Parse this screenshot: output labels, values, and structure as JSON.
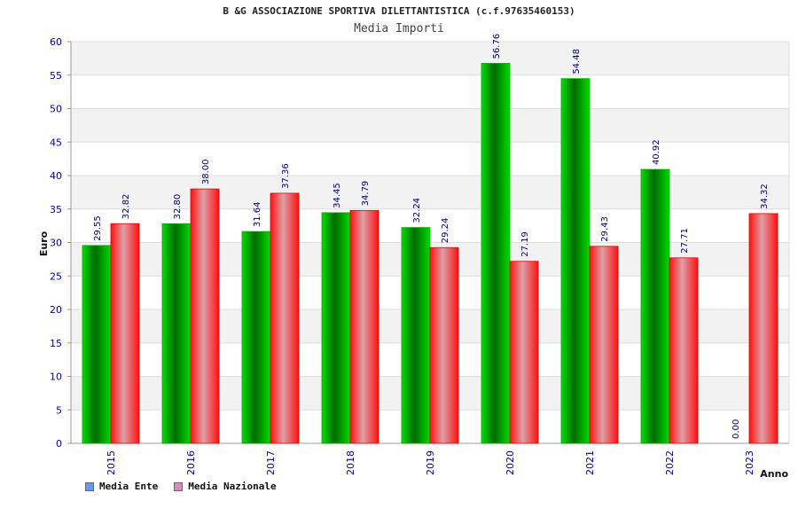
{
  "chart_data": {
    "type": "bar",
    "title": "B &G ASSOCIAZIONE SPORTIVA DILETTANTISTICA (c.f.97635460153)",
    "subtitle": "Media Importi",
    "xlabel": "Anno",
    "ylabel": "Euro",
    "ylim": [
      0,
      60
    ],
    "yticks": [
      0,
      5,
      10,
      15,
      20,
      25,
      30,
      35,
      40,
      45,
      50,
      55,
      60
    ],
    "categories": [
      "2015",
      "2016",
      "2017",
      "2018",
      "2019",
      "2020",
      "2021",
      "2022",
      "2023"
    ],
    "series": [
      {
        "name": "Media Ente",
        "values": [
          29.55,
          32.8,
          31.64,
          34.45,
          32.24,
          56.76,
          54.48,
          40.92,
          0.0
        ],
        "labels": [
          "29.55",
          "32.80",
          "31.64",
          "34.45",
          "32.24",
          "56.76",
          "54.48",
          "40.92",
          "0.00"
        ],
        "color": "#00c800",
        "legend_color": "#6699ff"
      },
      {
        "name": "Media Nazionale",
        "values": [
          32.82,
          38.0,
          37.36,
          34.79,
          29.24,
          27.19,
          29.43,
          27.71,
          34.32
        ],
        "labels": [
          "32.82",
          "38.00",
          "37.36",
          "34.79",
          "29.24",
          "27.19",
          "29.43",
          "27.71",
          "34.32"
        ],
        "color": "#ff1a1a",
        "legend_color": "#dd88bb"
      }
    ],
    "grid": true,
    "legend_position": "bottom-left"
  },
  "colors": {
    "axis_labels": "#0000aa",
    "value_labels": "#000066",
    "band_shade": "#f2f2f2"
  }
}
